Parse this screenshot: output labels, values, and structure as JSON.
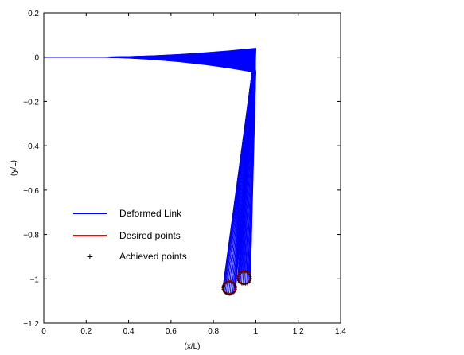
{
  "chart_data": {
    "type": "line",
    "title": "",
    "xlabel": "(x/L)",
    "ylabel": "(y/L)",
    "xlim": [
      0,
      1.4
    ],
    "ylim": [
      -1.2,
      0.2
    ],
    "x_ticks": [
      "0",
      "0.2",
      "0.4",
      "0.6",
      "0.8",
      "1",
      "1.2",
      "1.4"
    ],
    "y_ticks": [
      "0.2",
      "0",
      "−0.2",
      "−0.4",
      "−0.6",
      "−0.8",
      "−1",
      "−1.2"
    ],
    "grid": false,
    "legend_position": "lower-left",
    "series": [
      {
        "name": "Deformed Link",
        "color": "#0000ff",
        "style": "line"
      },
      {
        "name": "Desired points",
        "color": "#ff0000",
        "style": "line"
      },
      {
        "name": "Achieved points",
        "color": "#000000",
        "style": "marker-plus"
      }
    ],
    "deformed_link": {
      "joint_1": [
        0,
        0
      ],
      "joint_2_range": {
        "x": [
          0.99,
          1.0
        ],
        "y": [
          -0.07,
          0.04
        ]
      },
      "first_link_bend_start_x": 0.2
    },
    "desired_points_circles": [
      {
        "center": [
          0.875,
          -1.04
        ],
        "radius": 0.03
      },
      {
        "center": [
          0.945,
          -0.995
        ],
        "radius": 0.03
      }
    ]
  }
}
